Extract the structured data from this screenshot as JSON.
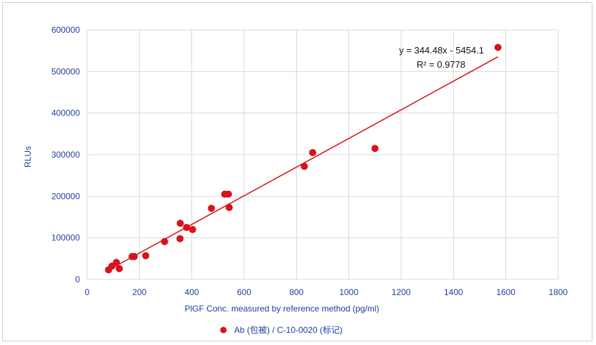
{
  "chart_data": {
    "type": "scatter",
    "title": "",
    "xlabel": "PlGF Conc. measured by reference method (pg/ml)",
    "ylabel": "RLUs",
    "xlim": [
      0,
      1800
    ],
    "ylim": [
      0,
      600000
    ],
    "x_ticks": [
      "0",
      "200",
      "400",
      "600",
      "800",
      "1000",
      "1200",
      "1400",
      "1600",
      "1800"
    ],
    "y_ticks": [
      "0",
      "100000",
      "200000",
      "300000",
      "400000",
      "500000",
      "600000"
    ],
    "grid": true,
    "legend_position": "bottom",
    "series": [
      {
        "name": "Ab (包被) / C-10-0020 (标记)",
        "color": "#d9121b",
        "points": [
          {
            "x": 82,
            "y": 23000
          },
          {
            "x": 95,
            "y": 32000
          },
          {
            "x": 112,
            "y": 41000
          },
          {
            "x": 123,
            "y": 26000
          },
          {
            "x": 172,
            "y": 55000
          },
          {
            "x": 180,
            "y": 55000
          },
          {
            "x": 224,
            "y": 57000
          },
          {
            "x": 296,
            "y": 91000
          },
          {
            "x": 355,
            "y": 98000
          },
          {
            "x": 356,
            "y": 135000
          },
          {
            "x": 380,
            "y": 125000
          },
          {
            "x": 403,
            "y": 120000
          },
          {
            "x": 475,
            "y": 171000
          },
          {
            "x": 526,
            "y": 205000
          },
          {
            "x": 540,
            "y": 205000
          },
          {
            "x": 543,
            "y": 173000
          },
          {
            "x": 830,
            "y": 272000
          },
          {
            "x": 862,
            "y": 305000
          },
          {
            "x": 1100,
            "y": 315000
          },
          {
            "x": 1570,
            "y": 558000
          }
        ]
      }
    ],
    "trendline": {
      "type": "linear",
      "slope": 344.48,
      "intercept": -5454.1,
      "x_range": [
        80,
        1570
      ],
      "color": "#d9121b",
      "equation": "y = 344.48x - 5454.1",
      "r2_label": "R² = 0.9778"
    }
  }
}
